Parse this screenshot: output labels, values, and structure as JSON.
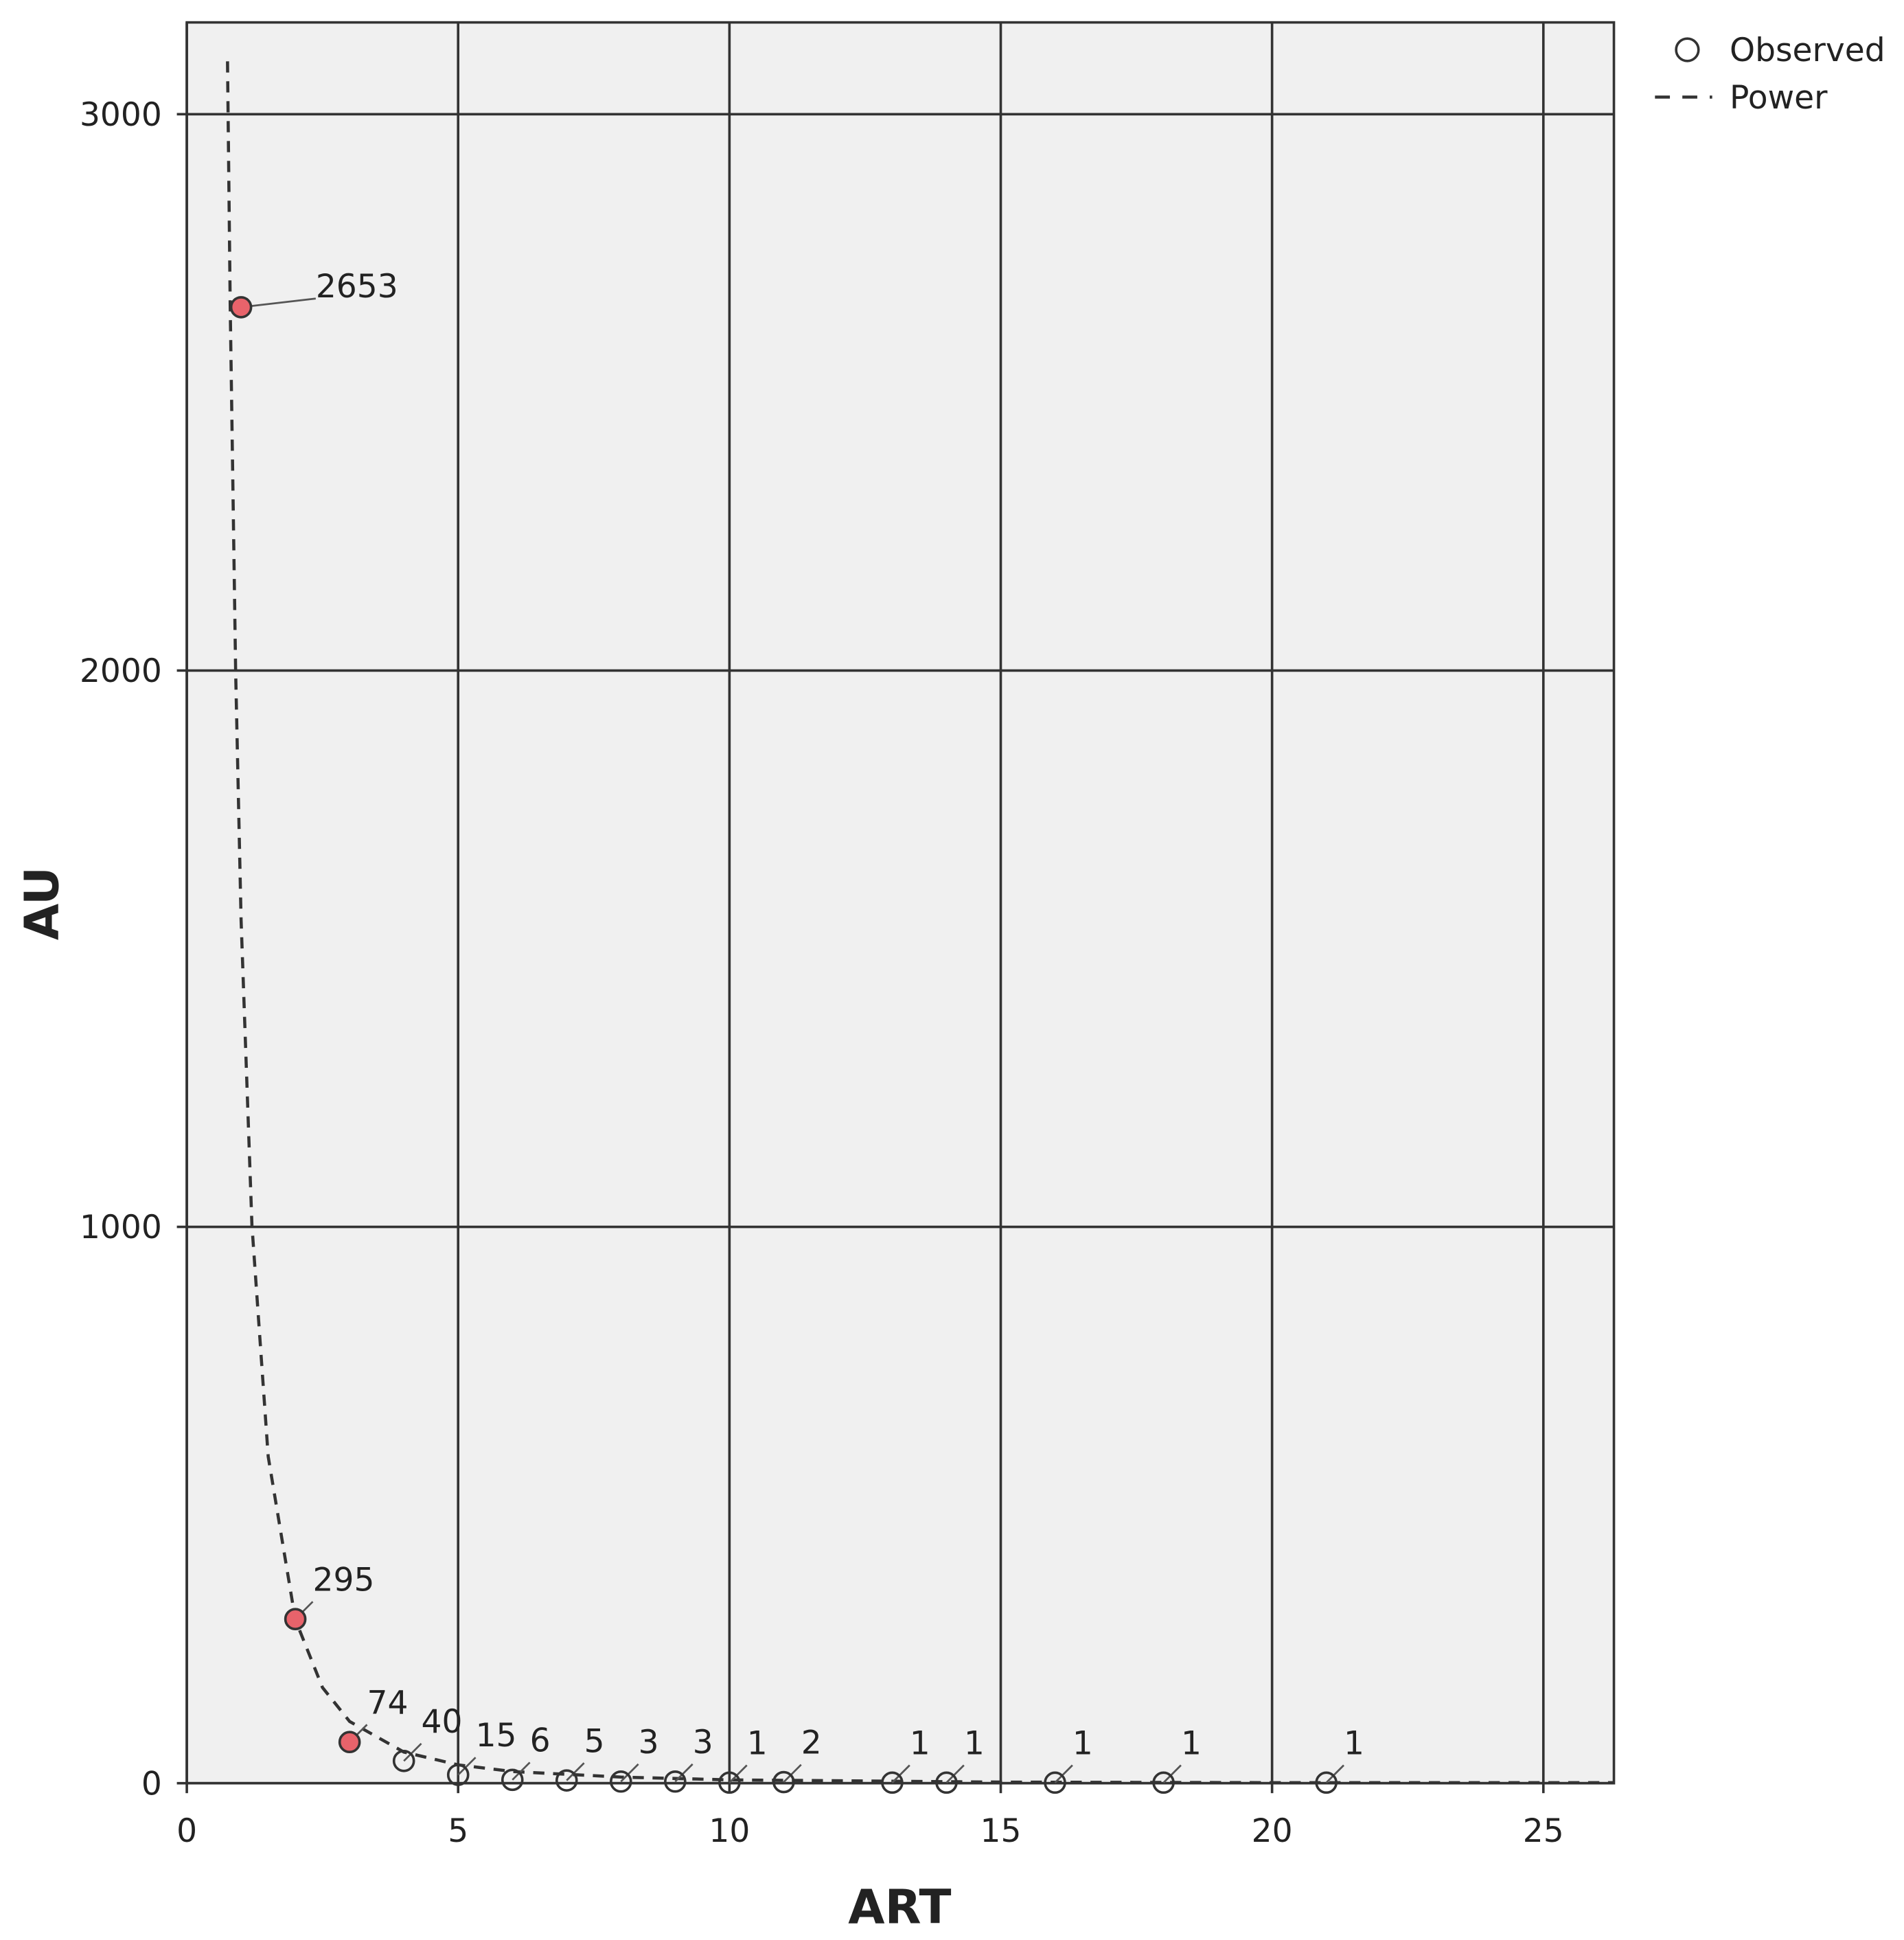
{
  "chart_data": {
    "type": "scatter",
    "x_label": "ART",
    "y_label": "AU",
    "xlim": [
      0,
      26.3
    ],
    "ylim": [
      0,
      3165
    ],
    "xticks": [
      0,
      5,
      10,
      15,
      20,
      25
    ],
    "yticks": [
      0,
      1000,
      2000,
      3000
    ],
    "grid": true,
    "legend": "top-right",
    "series": [
      {
        "name": "Observed",
        "marker": "circle",
        "color": "#333333",
        "x": [
          1,
          2,
          3,
          4,
          5,
          6,
          7,
          8,
          9,
          10,
          11,
          13,
          14,
          16,
          18,
          21
        ],
        "values": [
          2653,
          295,
          74,
          40,
          15,
          6,
          5,
          3,
          3,
          1,
          2,
          1,
          1,
          1,
          1,
          1
        ],
        "fills": [
          "#e8636b",
          "#e8636b",
          "#e8636b",
          "none",
          "none",
          "none",
          "none",
          "none",
          "none",
          "none",
          "none",
          "none",
          "none",
          "none",
          "none",
          "none"
        ]
      },
      {
        "name": "Power",
        "line": "dashed",
        "color": "#333333",
        "x": [
          0.75,
          0.8,
          0.9,
          1,
          1.2,
          1.5,
          2,
          2.5,
          3,
          4,
          5,
          6,
          8,
          10,
          15,
          20,
          26.3
        ],
        "values": [
          3095,
          2653,
          1997,
          1552,
          1003,
          587,
          294,
          172,
          111,
          56,
          33,
          21,
          11,
          6,
          2,
          1,
          1
        ]
      }
    ]
  }
}
